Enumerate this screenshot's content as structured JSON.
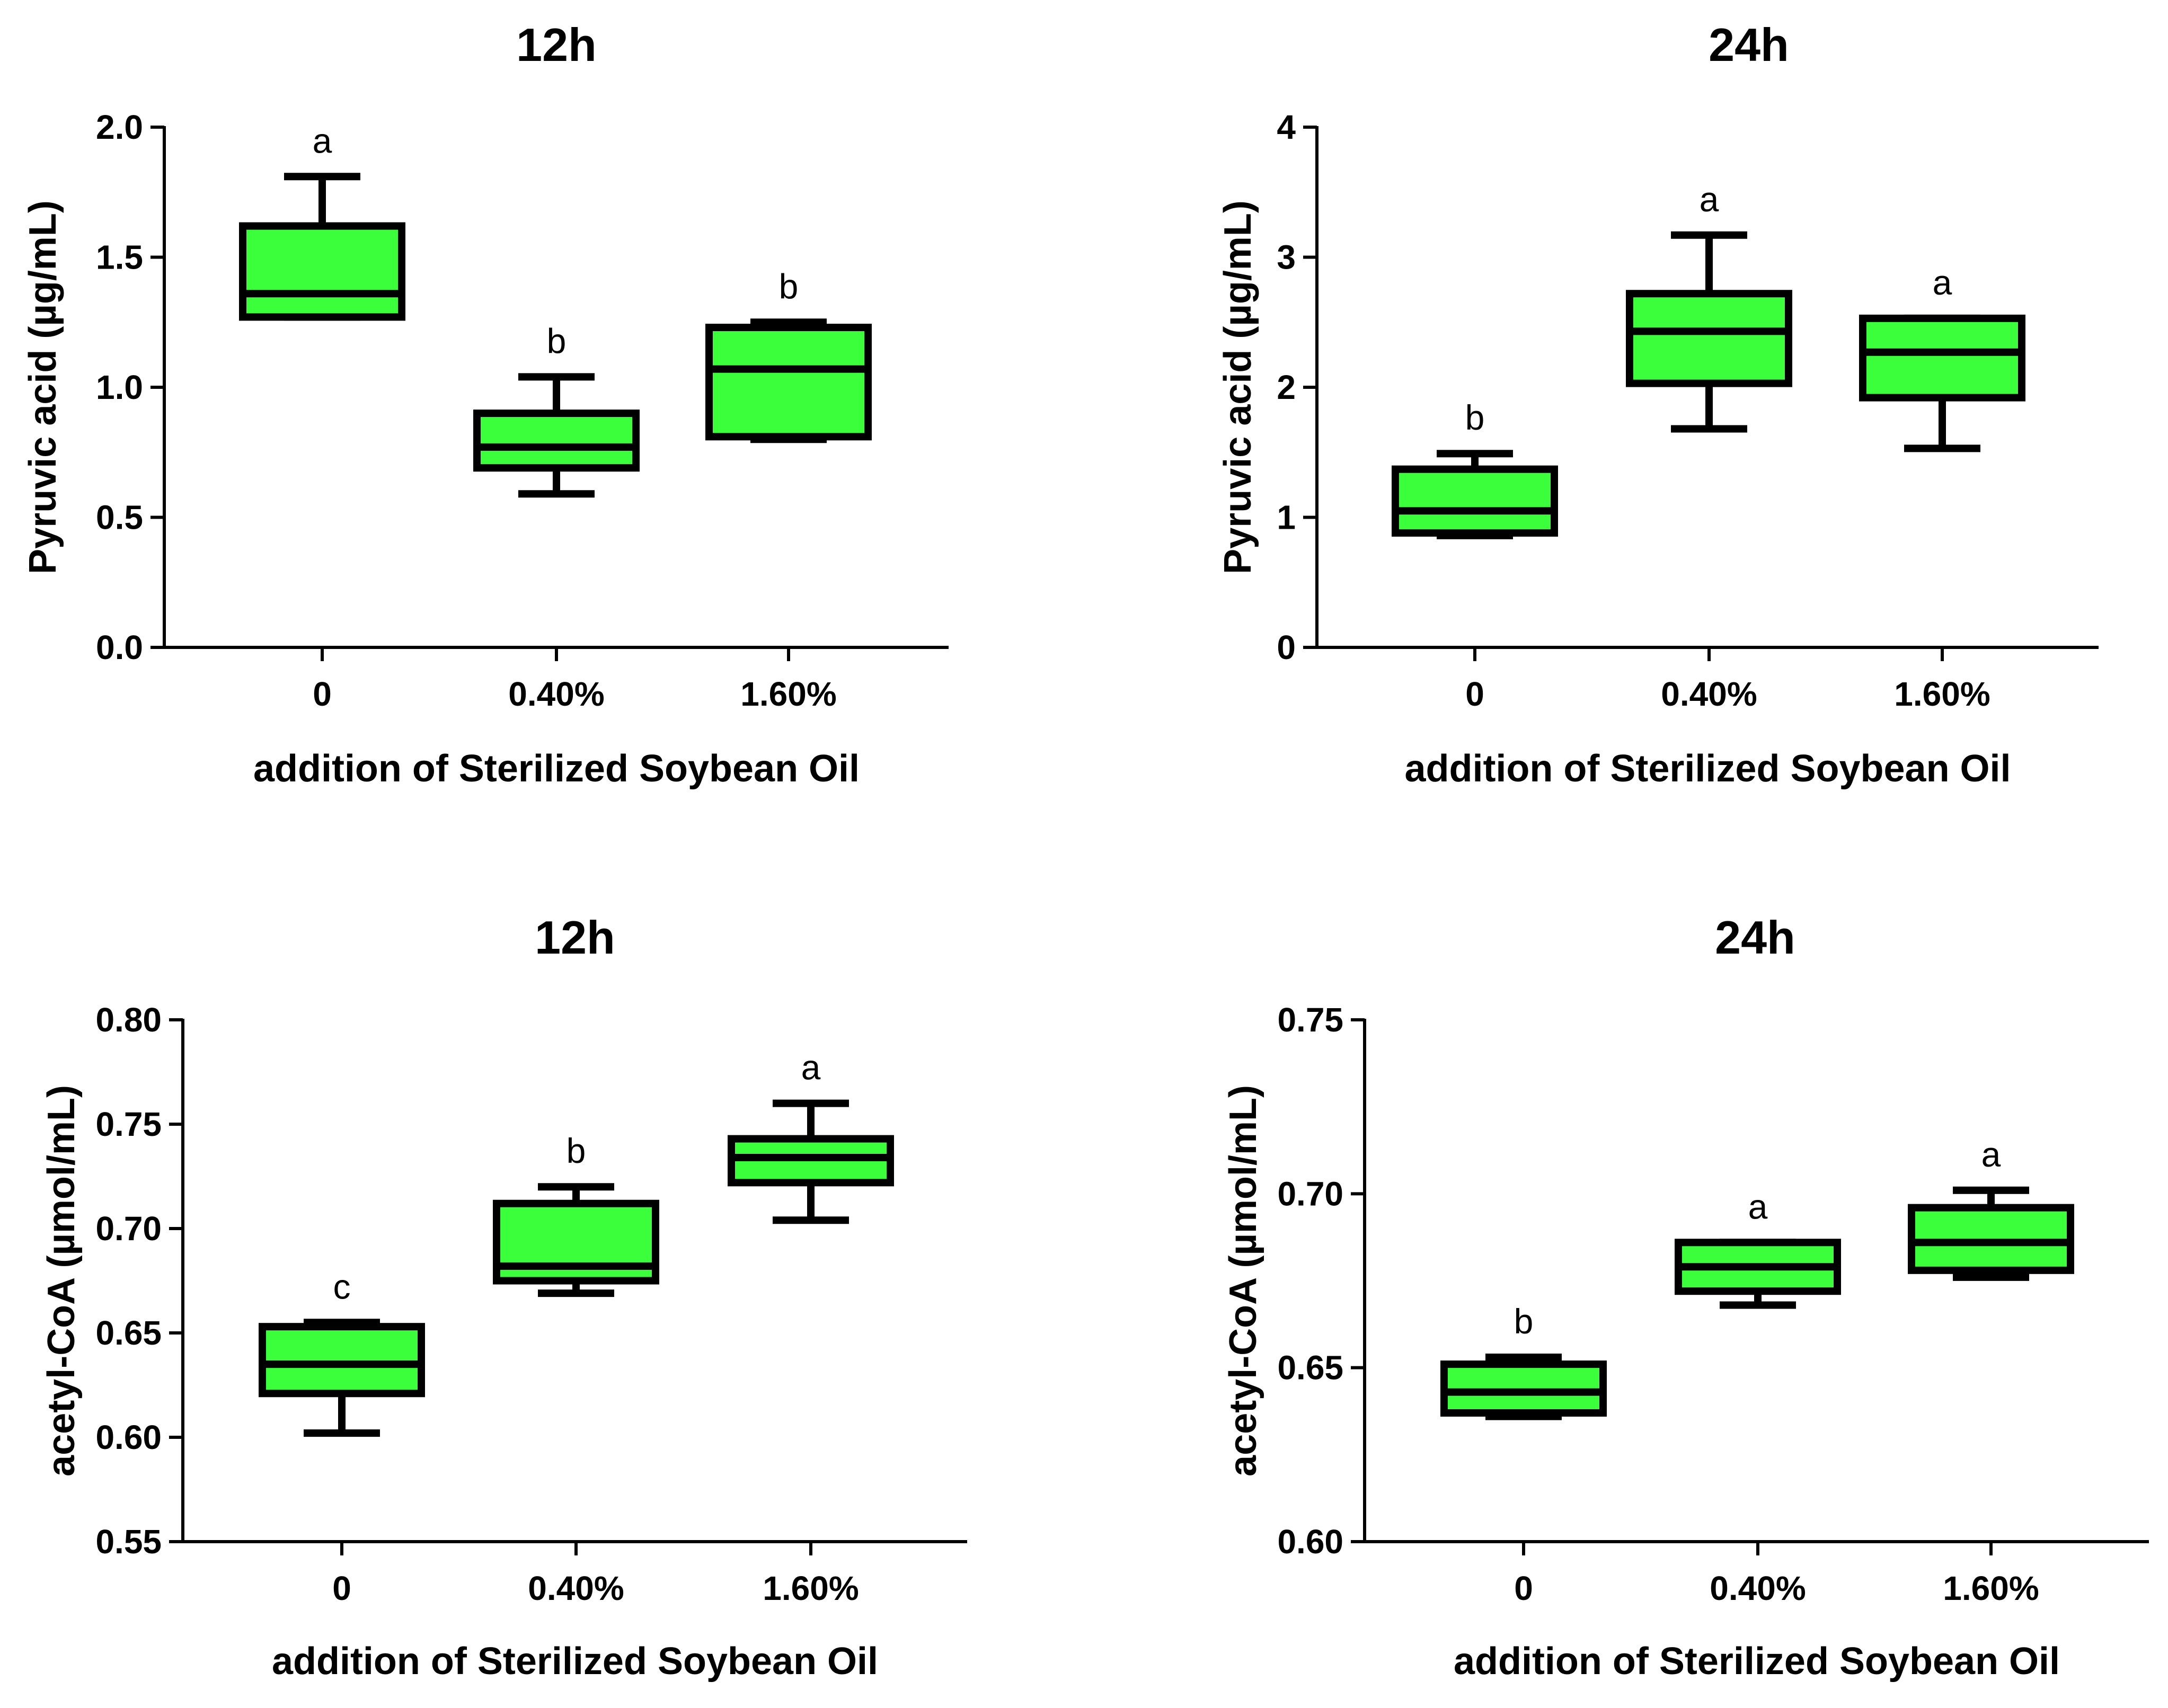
{
  "chart_data": [
    {
      "type": "box",
      "title": "12h",
      "xlabel": "addition of Sterilized Soybean Oil",
      "ylabel": "Pyruvic acid (µg/mL)",
      "ylim": [
        0,
        2.0
      ],
      "yticks": [
        "0.0",
        "0.5",
        "1.0",
        "1.5",
        "2.0"
      ],
      "yticks_values": [
        0,
        0.5,
        1.0,
        1.5,
        2.0
      ],
      "categories": [
        "0",
        "0.40%",
        "1.60%"
      ],
      "box_color": "#3cff3c",
      "boxes": [
        {
          "min": 1.27,
          "q1": 1.27,
          "median": 1.36,
          "q3": 1.62,
          "max": 1.81,
          "letter": "a"
        },
        {
          "min": 0.59,
          "q1": 0.69,
          "median": 0.77,
          "q3": 0.9,
          "max": 1.04,
          "letter": "b"
        },
        {
          "min": 0.8,
          "q1": 0.81,
          "median": 1.07,
          "q3": 1.23,
          "max": 1.25,
          "letter": "b"
        }
      ]
    },
    {
      "type": "box",
      "title": "24h",
      "xlabel": "addition of Sterilized Soybean Oil",
      "ylabel": "Pyruvic acid (µg/mL)",
      "ylim": [
        0,
        4
      ],
      "yticks": [
        "0",
        "1",
        "2",
        "3",
        "4"
      ],
      "yticks_values": [
        0,
        1,
        2,
        3,
        4
      ],
      "categories": [
        "0",
        "0.40%",
        "1.60%"
      ],
      "box_color": "#3cff3c",
      "boxes": [
        {
          "min": 0.86,
          "q1": 0.88,
          "median": 1.05,
          "q3": 1.37,
          "max": 1.49,
          "letter": "b"
        },
        {
          "min": 1.68,
          "q1": 2.03,
          "median": 2.43,
          "q3": 2.72,
          "max": 3.17,
          "letter": "a"
        },
        {
          "min": 1.53,
          "q1": 1.92,
          "median": 2.27,
          "q3": 2.53,
          "max": 2.53,
          "letter": "a"
        }
      ]
    },
    {
      "type": "box",
      "title": "12h",
      "xlabel": "addition of Sterilized Soybean Oil",
      "ylabel": "acetyl-CoA (µmol/mL)",
      "ylim": [
        0.55,
        0.8
      ],
      "yticks": [
        "0.55",
        "0.60",
        "0.65",
        "0.70",
        "0.75",
        "0.80"
      ],
      "yticks_values": [
        0.55,
        0.6,
        0.65,
        0.7,
        0.75,
        0.8
      ],
      "categories": [
        "0",
        "0.40%",
        "1.60%"
      ],
      "box_color": "#3cff3c",
      "boxes": [
        {
          "min": 0.602,
          "q1": 0.621,
          "median": 0.635,
          "q3": 0.653,
          "max": 0.655,
          "letter": "c"
        },
        {
          "min": 0.669,
          "q1": 0.675,
          "median": 0.682,
          "q3": 0.712,
          "max": 0.72,
          "letter": "b"
        },
        {
          "min": 0.704,
          "q1": 0.722,
          "median": 0.734,
          "q3": 0.743,
          "max": 0.76,
          "letter": "a"
        }
      ]
    },
    {
      "type": "box",
      "title": "24h",
      "xlabel": "addition of Sterilized Soybean Oil",
      "ylabel": "acetyl-CoA (µmol/mL)",
      "ylim": [
        0.6,
        0.75
      ],
      "yticks": [
        "0.60",
        "0.65",
        "0.70",
        "0.75"
      ],
      "yticks_values": [
        0.6,
        0.65,
        0.7,
        0.75
      ],
      "categories": [
        "0",
        "0.40%",
        "1.60%"
      ],
      "box_color": "#3cff3c",
      "boxes": [
        {
          "min": 0.636,
          "q1": 0.637,
          "median": 0.643,
          "q3": 0.651,
          "max": 0.653,
          "letter": "b"
        },
        {
          "min": 0.668,
          "q1": 0.672,
          "median": 0.679,
          "q3": 0.686,
          "max": 0.686,
          "letter": "a"
        },
        {
          "min": 0.676,
          "q1": 0.678,
          "median": 0.686,
          "q3": 0.696,
          "max": 0.701,
          "letter": "a"
        }
      ]
    }
  ]
}
